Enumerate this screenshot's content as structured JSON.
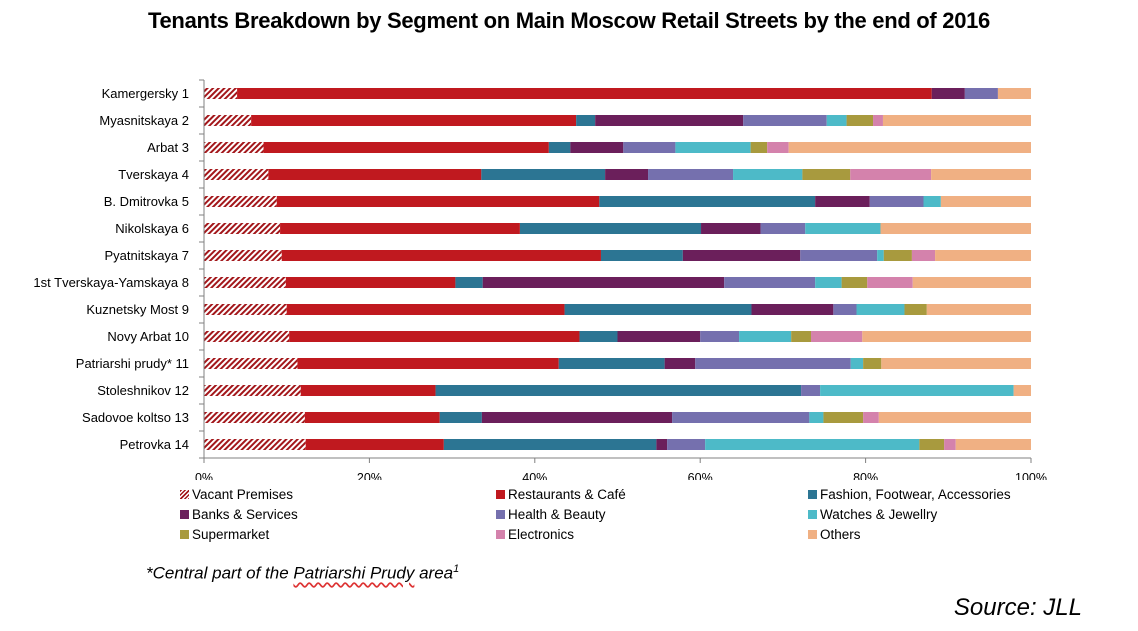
{
  "chart_data": {
    "type": "bar",
    "orientation": "horizontal",
    "stacked": "percent",
    "title": "Tenants Breakdown by Segment on Main Moscow Retail Streets by the end of 2016",
    "categories": [
      "Kamergersky 1",
      "Myasnitskaya 2",
      "Arbat 3",
      "Tverskaya 4",
      "B. Dmitrovka 5",
      "Nikolskaya 6",
      "Pyatnitskaya 7",
      "1st Tverskaya-Yamskaya 8",
      "Kuznetsky Most 9",
      "Novy Arbat 10",
      "Patriarshi prudy* 11",
      "Stoleshnikov 12",
      "Sadovoe koltso 13",
      "Petrovka 14"
    ],
    "series": [
      {
        "name": "Vacant Premises",
        "color": "#a3171b",
        "pattern": "hatch",
        "values": [
          4,
          5.7,
          7.2,
          7.8,
          8.8,
          9.2,
          9.4,
          9.9,
          10,
          10.3,
          11.3,
          11.7,
          12.2,
          12.3
        ]
      },
      {
        "name": "Restaurants & Café",
        "color": "#c0191f",
        "values": [
          84,
          39.3,
          34.5,
          25.8,
          39,
          29,
          38.6,
          20.5,
          33.6,
          35.1,
          31.6,
          16.3,
          16.3,
          16.7
        ]
      },
      {
        "name": "Fashion, Footwear, Accessories",
        "color": "#2c7593",
        "values": [
          0,
          2.3,
          2.6,
          15,
          26.1,
          21.9,
          9.9,
          3.3,
          22.6,
          4.6,
          12.8,
          44.2,
          5.1,
          25.7
        ]
      },
      {
        "name": "Banks & Services",
        "color": "#6b1f5b",
        "values": [
          4,
          17.9,
          6.4,
          5.2,
          6.6,
          7.2,
          14.2,
          29.2,
          9.9,
          10,
          3.7,
          0,
          23,
          1.3
        ]
      },
      {
        "name": "Health & Beauty",
        "color": "#7570ae",
        "values": [
          4,
          10.1,
          6.3,
          10.3,
          6.5,
          5.4,
          9.3,
          11,
          2.8,
          4.7,
          18.8,
          2.3,
          16.6,
          4.6
        ]
      },
      {
        "name": "Watches & Jewellry",
        "color": "#4dbac8",
        "values": [
          0,
          2.4,
          9.1,
          8.4,
          2.1,
          9.1,
          0.8,
          3.2,
          5.8,
          6.3,
          1.5,
          23.4,
          1.7,
          25.9
        ]
      },
      {
        "name": "Supermarket",
        "color": "#a89a3e",
        "values": [
          0,
          3.2,
          2,
          5.8,
          0,
          0,
          3.4,
          3.1,
          2.7,
          2.4,
          2.2,
          0,
          4.8,
          3
        ]
      },
      {
        "name": "Electronics",
        "color": "#d482ac",
        "values": [
          0,
          1.2,
          2.6,
          9.8,
          0,
          0,
          2.8,
          5.5,
          0,
          6.2,
          0,
          0,
          1.9,
          1.4
        ]
      },
      {
        "name": "Others",
        "color": "#f0b083",
        "values": [
          4,
          17.9,
          29.3,
          12.1,
          10.9,
          18.2,
          11.6,
          14.3,
          12.6,
          20.4,
          18.1,
          2.1,
          18.4,
          9.1
        ]
      }
    ],
    "xlim": [
      0,
      100
    ],
    "xticks": [
      "0%",
      "20%",
      "40%",
      "60%",
      "80%",
      "100%"
    ],
    "legend_position": "bottom",
    "footnote_prefix": "*Central part of the ",
    "footnote_underlined": "Patriarshi Prudy",
    "footnote_suffix": " area",
    "footnote_mark": "1",
    "source": "Source: JLL"
  }
}
